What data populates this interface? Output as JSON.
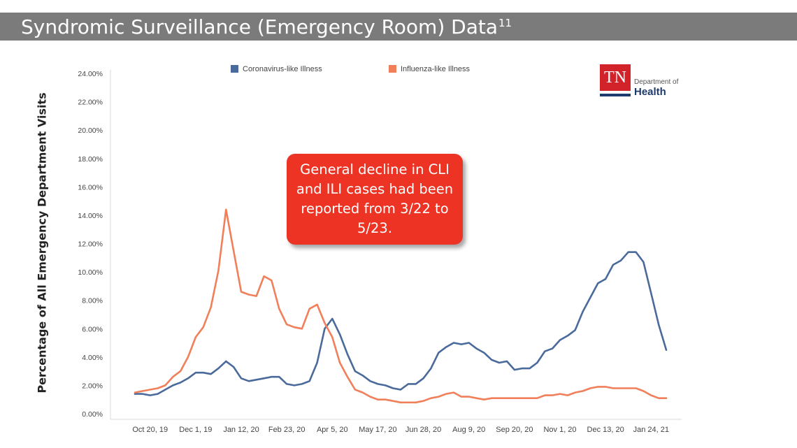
{
  "slide": {
    "title": "Syndromic Surveillance (Emergency Room) Data",
    "title_superscript": "11",
    "callout": "General decline in CLI and ILI cases had been reported from 3/22 to 5/23.",
    "logo": {
      "abbr": "TN",
      "line1": "Department of",
      "line2": "Health"
    }
  },
  "chart_data": {
    "type": "line",
    "title": "",
    "xlabel": "",
    "ylabel": "Percentage of All Emergency Department Visits",
    "ylim": [
      0,
      24
    ],
    "y_ticks": [
      0,
      2,
      4,
      6,
      8,
      10,
      12,
      14,
      16,
      18,
      20,
      22,
      24
    ],
    "y_tick_labels": [
      "0.00%",
      "2.00%",
      "4.00%",
      "6.00%",
      "8.00%",
      "10.00%",
      "12.00%",
      "14.00%",
      "16.00%",
      "18.00%",
      "20.00%",
      "22.00%",
      "24.00%"
    ],
    "x_tick_labels": [
      "Oct 20, 19",
      "Dec 1, 19",
      "Jan 12, 20",
      "Feb 23, 20",
      "Apr 5, 20",
      "May 17, 20",
      "Jun 28, 20",
      "Aug 9, 20",
      "Sep 20, 20",
      "Nov 1, 20",
      "Dec 13, 20",
      "Jan 24, 21"
    ],
    "x_tick_weeks": [
      2,
      8,
      14,
      20,
      26,
      32,
      38,
      44,
      50,
      56,
      62,
      68
    ],
    "week_count": 71,
    "legend_position": "top",
    "grid": false,
    "series": [
      {
        "name": "Coronavirus-like Illness",
        "color": "#4a6a9b",
        "values": [
          1.4,
          1.4,
          1.3,
          1.4,
          1.7,
          2.0,
          2.2,
          2.5,
          2.9,
          2.9,
          2.8,
          3.2,
          3.7,
          3.3,
          2.5,
          2.3,
          2.4,
          2.5,
          2.6,
          2.6,
          2.1,
          2.0,
          2.1,
          2.3,
          3.6,
          6.0,
          6.7,
          5.6,
          4.2,
          3.0,
          2.7,
          2.3,
          2.1,
          2.0,
          1.8,
          1.7,
          2.1,
          2.1,
          2.5,
          3.2,
          4.3,
          4.7,
          5.0,
          4.9,
          5.0,
          4.6,
          4.3,
          3.8,
          3.6,
          3.7,
          3.1,
          3.2,
          3.2,
          3.6,
          4.4,
          4.6,
          5.2,
          5.5,
          5.9,
          7.2,
          8.2,
          9.2,
          9.5,
          10.5,
          10.8,
          11.4,
          11.4,
          10.7,
          8.5,
          6.3,
          4.5
        ]
      },
      {
        "name": "Influenza-like Illness",
        "color": "#f07f5a",
        "values": [
          1.5,
          1.6,
          1.7,
          1.8,
          2.0,
          2.6,
          3.0,
          4.0,
          5.4,
          6.1,
          7.5,
          10.1,
          14.4,
          11.5,
          8.6,
          8.4,
          8.3,
          9.7,
          9.4,
          7.4,
          6.3,
          6.1,
          6.0,
          7.4,
          7.7,
          6.4,
          5.4,
          3.6,
          2.6,
          1.7,
          1.5,
          1.2,
          1.0,
          1.0,
          0.9,
          0.8,
          0.8,
          0.8,
          0.9,
          1.1,
          1.2,
          1.4,
          1.5,
          1.2,
          1.2,
          1.1,
          1.0,
          1.1,
          1.1,
          1.1,
          1.1,
          1.1,
          1.1,
          1.1,
          1.3,
          1.3,
          1.4,
          1.3,
          1.5,
          1.6,
          1.8,
          1.9,
          1.9,
          1.8,
          1.8,
          1.8,
          1.8,
          1.6,
          1.3,
          1.1,
          1.1
        ]
      }
    ]
  }
}
